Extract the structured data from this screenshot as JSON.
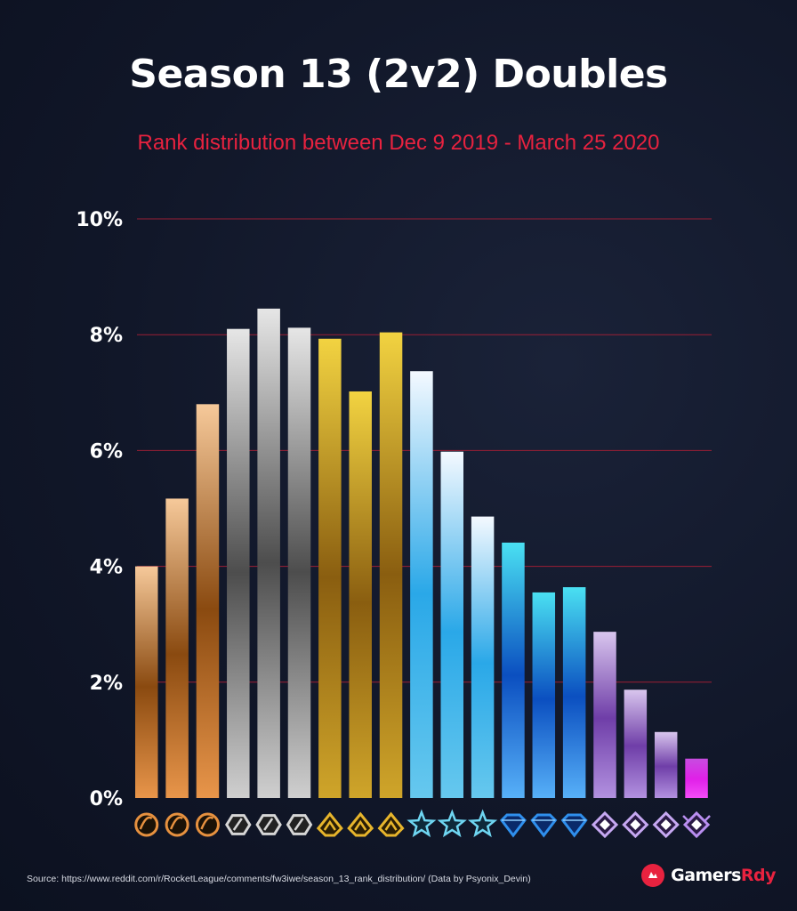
{
  "chart_data": {
    "type": "bar",
    "title": "Season 13 (2v2) Doubles",
    "subtitle": "Rank distribution between Dec 9 2019 - March 25 2020",
    "ylim": [
      0,
      10
    ],
    "y_ticks": [
      0,
      2,
      4,
      6,
      8,
      10
    ],
    "y_tick_labels": [
      "0%",
      "2%",
      "4%",
      "6%",
      "8%",
      "10%"
    ],
    "grid": true,
    "categories": [
      "Bronze I",
      "Bronze II",
      "Bronze III",
      "Silver I",
      "Silver II",
      "Silver III",
      "Gold I",
      "Gold II",
      "Gold III",
      "Platinum I",
      "Platinum II",
      "Platinum III",
      "Diamond I",
      "Diamond II",
      "Diamond III",
      "Champion I",
      "Champion II",
      "Champion III",
      "Grand Champion"
    ],
    "values": [
      4.0,
      5.17,
      6.8,
      8.1,
      8.45,
      8.12,
      7.93,
      7.02,
      8.04,
      7.37,
      5.98,
      4.86,
      4.41,
      3.55,
      3.64,
      2.87,
      1.87,
      1.14,
      0.68
    ],
    "tier_icons": [
      "bronze-1-icon",
      "bronze-2-icon",
      "bronze-3-icon",
      "silver-1-icon",
      "silver-2-icon",
      "silver-3-icon",
      "gold-1-icon",
      "gold-2-icon",
      "gold-3-icon",
      "platinum-1-icon",
      "platinum-2-icon",
      "platinum-3-icon",
      "diamond-1-icon",
      "diamond-2-icon",
      "diamond-3-icon",
      "champion-1-icon",
      "champion-2-icon",
      "champion-3-icon",
      "grand-champion-icon"
    ],
    "colors": {
      "bronze": [
        "#f6c99a",
        "#8a4a10",
        "#e8954a"
      ],
      "silver": [
        "#e6e6e6",
        "#4d4d4d",
        "#cfcfcf"
      ],
      "gold": [
        "#f2d341",
        "#8a5e10",
        "#cfa52a"
      ],
      "platinum": [
        "#f4f9ff",
        "#2aa8e8",
        "#66c8ee"
      ],
      "diamond": [
        "#4ae0f2",
        "#0b4fc0",
        "#57b0f8"
      ],
      "champion": [
        "#d9c6ee",
        "#6f3ea8",
        "#b291e0"
      ],
      "grand": [
        "#c74ce0",
        "#e020e8",
        "#f44cf8"
      ],
      "gridline": "#9c1f35",
      "accent": "#e8223f"
    }
  },
  "footer": {
    "source": "Source: https://www.reddit.com/r/RocketLeague/comments/fw3iwe/season_13_rank_distribution/ (Data by Psyonix_Devin)",
    "brand_part1": "Gamers",
    "brand_part2": "Rdy"
  }
}
